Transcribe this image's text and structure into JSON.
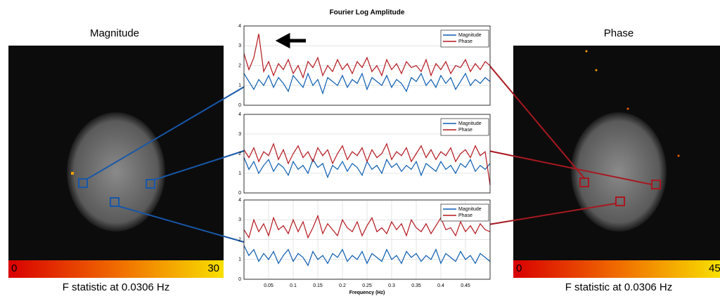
{
  "panels": {
    "left": {
      "title": "Magnitude",
      "colorbar_ticks": [
        0,
        30
      ],
      "caption": "F statistic at 0.0306 Hz"
    },
    "right": {
      "title": "Phase",
      "colorbar_ticks": [
        0,
        45
      ],
      "caption": "F statistic at 0.0306 Hz"
    }
  },
  "chart_data": [
    {
      "type": "line",
      "title": "Fourier Log Amplitude",
      "legend": "upper right",
      "grid": true,
      "xlim": [
        0,
        0.5
      ],
      "ylim": [
        0,
        4
      ],
      "yticks": [
        0,
        1,
        2,
        3,
        4
      ],
      "x": [
        0,
        0.01,
        0.02,
        0.03,
        0.04,
        0.05,
        0.06,
        0.07,
        0.08,
        0.09,
        0.1,
        0.11,
        0.12,
        0.13,
        0.14,
        0.15,
        0.16,
        0.17,
        0.18,
        0.19,
        0.2,
        0.21,
        0.22,
        0.23,
        0.24,
        0.25,
        0.26,
        0.27,
        0.28,
        0.29,
        0.3,
        0.31,
        0.32,
        0.33,
        0.34,
        0.35,
        0.36,
        0.37,
        0.38,
        0.39,
        0.4,
        0.41,
        0.42,
        0.43,
        0.44,
        0.45,
        0.46,
        0.47,
        0.48,
        0.49,
        0.5
      ],
      "series": [
        {
          "name": "Magnitude",
          "color": "#0b5cb0",
          "values": [
            1.6,
            1.2,
            0.8,
            1.3,
            1.0,
            1.5,
            0.9,
            1.4,
            1.1,
            0.7,
            1.5,
            1.2,
            0.9,
            1.6,
            1.0,
            1.3,
            0.6,
            1.4,
            1.2,
            1.0,
            1.5,
            0.9,
            1.3,
            1.1,
            1.6,
            0.8,
            1.4,
            1.2,
            1.0,
            1.5,
            0.9,
            1.3,
            1.1,
            0.7,
            1.4,
            1.2,
            1.6,
            1.0,
            1.3,
            0.9,
            1.5,
            1.1,
            1.4,
            0.8,
            1.2,
            1.6,
            1.0,
            1.3,
            1.1,
            1.4,
            1.2
          ]
        },
        {
          "name": "Phase",
          "color": "#b3161d",
          "values": [
            2.6,
            1.8,
            2.4,
            3.6,
            1.7,
            2.2,
            1.5,
            2.1,
            1.8,
            2.3,
            1.6,
            2.0,
            1.4,
            2.2,
            1.9,
            2.4,
            1.5,
            2.0,
            1.7,
            2.3,
            1.8,
            2.1,
            1.6,
            2.2,
            1.9,
            2.4,
            1.7,
            2.0,
            1.5,
            2.3,
            1.8,
            2.1,
            1.6,
            2.2,
            1.9,
            2.0,
            1.7,
            2.3,
            1.5,
            2.1,
            1.8,
            2.2,
            1.6,
            2.0,
            1.9,
            2.3,
            1.7,
            2.1,
            1.8,
            2.2,
            2.0
          ]
        }
      ]
    },
    {
      "type": "line",
      "legend": "upper right",
      "grid": true,
      "xlim": [
        0,
        0.5
      ],
      "ylim": [
        0,
        4
      ],
      "yticks": [
        0,
        1,
        2,
        3,
        4
      ],
      "x": [
        0,
        0.01,
        0.02,
        0.03,
        0.04,
        0.05,
        0.06,
        0.07,
        0.08,
        0.09,
        0.1,
        0.11,
        0.12,
        0.13,
        0.14,
        0.15,
        0.16,
        0.17,
        0.18,
        0.19,
        0.2,
        0.21,
        0.22,
        0.23,
        0.24,
        0.25,
        0.26,
        0.27,
        0.28,
        0.29,
        0.3,
        0.31,
        0.32,
        0.33,
        0.34,
        0.35,
        0.36,
        0.37,
        0.38,
        0.39,
        0.4,
        0.41,
        0.42,
        0.43,
        0.44,
        0.45,
        0.46,
        0.47,
        0.48,
        0.49,
        0.5
      ],
      "series": [
        {
          "name": "Magnitude",
          "color": "#0b5cb0",
          "values": [
            1.8,
            1.2,
            1.6,
            1.0,
            1.4,
            1.7,
            1.1,
            1.5,
            1.3,
            0.9,
            1.6,
            1.2,
            1.4,
            1.0,
            1.7,
            1.3,
            1.5,
            0.8,
            1.4,
            1.2,
            1.6,
            1.1,
            1.5,
            1.3,
            0.9,
            1.6,
            1.2,
            1.4,
            1.0,
            1.7,
            1.3,
            1.5,
            1.1,
            1.4,
            1.2,
            1.6,
            0.9,
            1.5,
            1.3,
            1.1,
            1.6,
            1.2,
            1.4,
            1.0,
            1.5,
            1.3,
            1.7,
            1.1,
            1.4,
            1.2,
            1.5
          ]
        },
        {
          "name": "Phase",
          "color": "#b3161d",
          "values": [
            2.2,
            1.8,
            2.3,
            1.6,
            2.1,
            1.9,
            2.5,
            1.7,
            2.2,
            1.5,
            2.0,
            2.4,
            1.8,
            2.1,
            1.6,
            2.3,
            1.9,
            2.2,
            1.5,
            2.0,
            2.4,
            1.7,
            2.1,
            1.9,
            2.3,
            1.6,
            2.2,
            1.8,
            2.0,
            2.5,
            1.7,
            2.1,
            1.9,
            2.3,
            1.6,
            2.0,
            2.4,
            1.8,
            2.2,
            1.7,
            2.1,
            1.9,
            2.3,
            1.6,
            2.0,
            2.2,
            1.8,
            2.4,
            1.9,
            2.1,
            0.4
          ]
        }
      ]
    },
    {
      "type": "line",
      "x_label": "Frequency (Hz)",
      "legend": "upper right",
      "grid": true,
      "xlim": [
        0,
        0.5
      ],
      "ylim": [
        0,
        4
      ],
      "yticks": [
        0,
        1,
        2,
        3,
        4
      ],
      "xticks": [
        0.05,
        0.1,
        0.15,
        0.2,
        0.25,
        0.3,
        0.35,
        0.4,
        0.45
      ],
      "x": [
        0,
        0.01,
        0.02,
        0.03,
        0.04,
        0.05,
        0.06,
        0.07,
        0.08,
        0.09,
        0.1,
        0.11,
        0.12,
        0.13,
        0.14,
        0.15,
        0.16,
        0.17,
        0.18,
        0.19,
        0.2,
        0.21,
        0.22,
        0.23,
        0.24,
        0.25,
        0.26,
        0.27,
        0.28,
        0.29,
        0.3,
        0.31,
        0.32,
        0.33,
        0.34,
        0.35,
        0.36,
        0.37,
        0.38,
        0.39,
        0.4,
        0.41,
        0.42,
        0.43,
        0.44,
        0.45,
        0.46,
        0.47,
        0.48,
        0.49,
        0.5
      ],
      "series": [
        {
          "name": "Magnitude",
          "color": "#0b5cb0",
          "values": [
            1.7,
            1.2,
            1.5,
            0.9,
            1.3,
            1.0,
            1.4,
            0.8,
            1.2,
            1.5,
            0.9,
            1.3,
            1.1,
            0.7,
            1.4,
            1.0,
            1.2,
            0.8,
            1.3,
            1.1,
            1.5,
            0.9,
            1.2,
            1.0,
            1.4,
            0.8,
            1.3,
            1.1,
            0.9,
            1.5,
            1.0,
            1.2,
            0.8,
            1.4,
            1.1,
            1.3,
            0.9,
            1.2,
            1.0,
            1.5,
            0.8,
            1.3,
            1.1,
            0.9,
            1.4,
            1.0,
            1.2,
            0.8,
            1.3,
            1.1,
            0.9
          ]
        },
        {
          "name": "Phase",
          "color": "#b3161d",
          "values": [
            2.5,
            2.1,
            3.0,
            2.4,
            2.8,
            2.2,
            3.1,
            2.5,
            2.7,
            2.3,
            3.0,
            2.4,
            2.9,
            2.1,
            2.6,
            3.2,
            2.3,
            2.8,
            2.5,
            2.2,
            3.0,
            2.6,
            2.4,
            2.9,
            2.2,
            2.7,
            3.1,
            2.4,
            2.6,
            2.3,
            2.9,
            2.5,
            2.8,
            2.2,
            3.0,
            2.6,
            2.4,
            2.8,
            2.3,
            2.7,
            3.1,
            2.5,
            2.6,
            2.2,
            2.9,
            2.4,
            2.7,
            2.3,
            2.8,
            2.5,
            2.4
          ]
        }
      ]
    }
  ]
}
